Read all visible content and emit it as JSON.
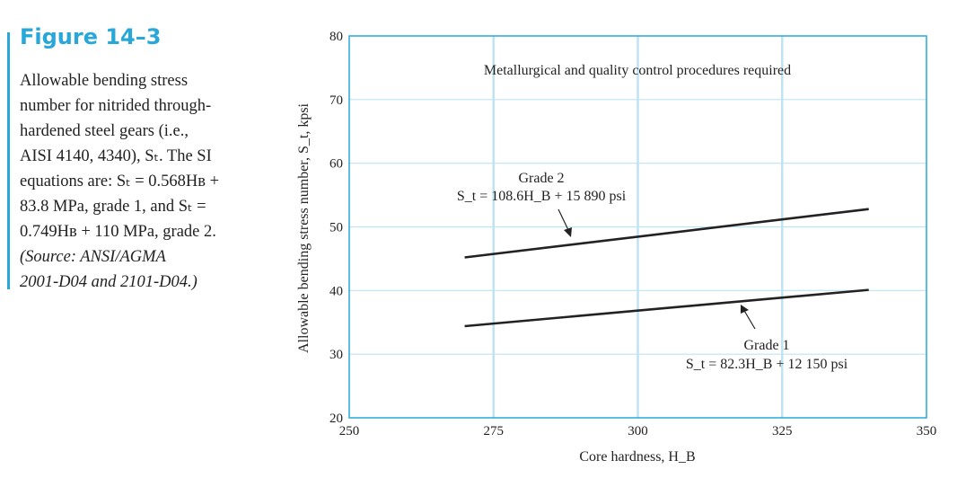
{
  "figure": {
    "title": "Figure 14–3",
    "caption_lines": [
      "Allowable bending stress",
      "number for nitrided through-",
      "hardened steel gears (i.e.,",
      "AISI 4140, 4340), Sₜ. The SI",
      "equations are: Sₜ = 0.568Hʙ +",
      "83.8 MPa, grade 1, and Sₜ =",
      "0.749Hʙ + 110 MPa, grade 2."
    ],
    "source_lines": [
      "(Source: ANSI/AGMA",
      "2001-D04 and 2101-D04.)"
    ]
  },
  "chart_data": {
    "type": "line",
    "title": "",
    "xlabel": "Core hardness, H_B",
    "ylabel": "Allowable bending stress number, S_t, kpsi",
    "xlim": [
      250,
      350
    ],
    "ylim": [
      20,
      80
    ],
    "xticks": [
      250,
      275,
      300,
      325,
      350
    ],
    "yticks": [
      20,
      30,
      40,
      50,
      60,
      70,
      80
    ],
    "grid": true,
    "series": [
      {
        "name": "Grade 2",
        "equation": "S_t = 108.6H_B + 15 890 psi",
        "x": [
          270,
          340
        ],
        "y": [
          45.2,
          52.8
        ]
      },
      {
        "name": "Grade 1",
        "equation": "S_t = 82.3H_B + 12 150 psi",
        "x": [
          270,
          340
        ],
        "y": [
          34.4,
          40.1
        ]
      }
    ],
    "annotations": [
      "Metallurgical and quality control procedures required"
    ],
    "colors": {
      "axis": "#29a7d8",
      "grid": "#bfe3f2",
      "line": "#222222"
    }
  }
}
